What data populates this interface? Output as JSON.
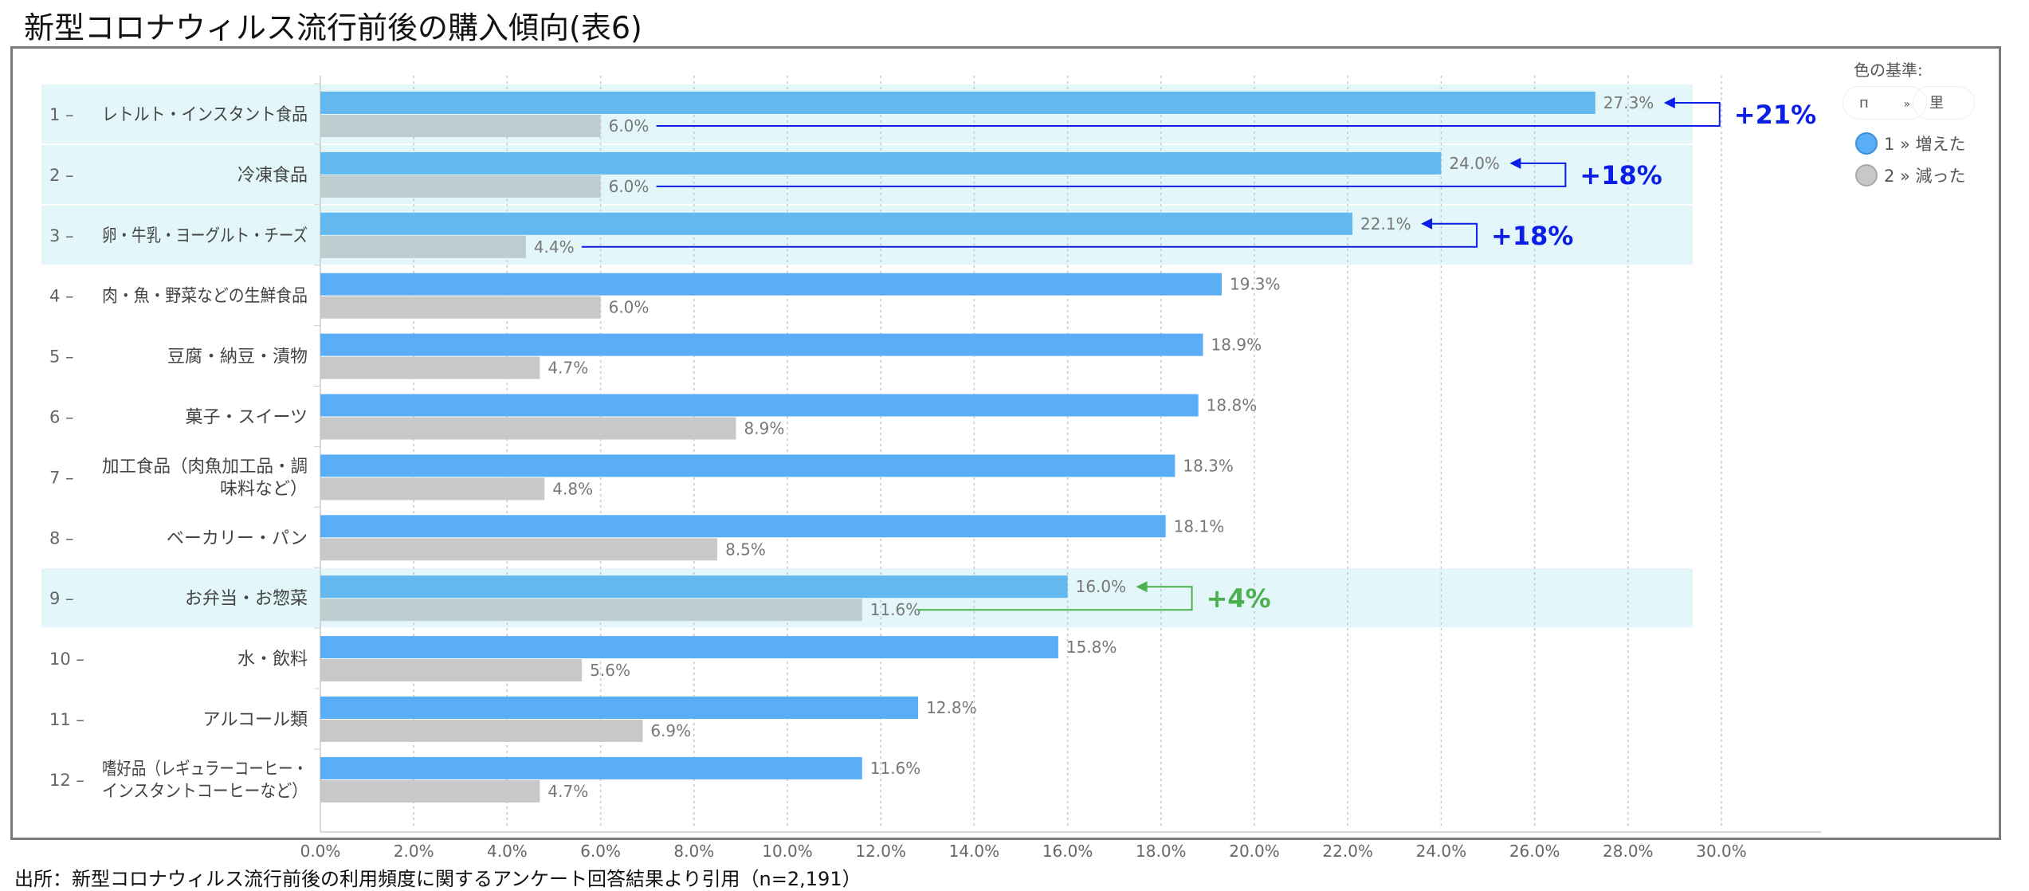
{
  "title": "新型コロナウィルス流行前後の購入傾向(表6)",
  "source": "出所：新型コロナウィルス流行前後の利用頻度に関するアンケート回答結果より引用（n=2,191）",
  "legend": {
    "title": "色の基準:",
    "pill_left": "п",
    "pill_sep": "»",
    "pill_right": "里",
    "items": [
      {
        "label": "1 » 増えた",
        "color": "#5aaef5"
      },
      {
        "label": "2 » 減った",
        "color": "#c8c8c8"
      }
    ]
  },
  "chart_data": {
    "type": "bar",
    "orientation": "horizontal",
    "categories": [
      {
        "rank": "1",
        "label": [
          "レトルト・インスタント食品"
        ]
      },
      {
        "rank": "2",
        "label": [
          "冷凍食品"
        ]
      },
      {
        "rank": "3",
        "label": [
          "卵・牛乳・ヨーグルト・チーズ"
        ]
      },
      {
        "rank": "4",
        "label": [
          "肉・魚・野菜などの生鮮食品"
        ]
      },
      {
        "rank": "5",
        "label": [
          "豆腐・納豆・漬物"
        ]
      },
      {
        "rank": "6",
        "label": [
          "菓子・スイーツ"
        ]
      },
      {
        "rank": "7",
        "label": [
          "加工食品（肉魚加工品・調",
          "味料など）"
        ]
      },
      {
        "rank": "8",
        "label": [
          "ベーカリー・パン"
        ]
      },
      {
        "rank": "9",
        "label": [
          "お弁当・お惣菜"
        ]
      },
      {
        "rank": "10",
        "label": [
          "水・飲料"
        ]
      },
      {
        "rank": "11",
        "label": [
          "アルコール類"
        ]
      },
      {
        "rank": "12",
        "label": [
          "嗜好品（レギュラーコーヒー・",
          "インスタントコーヒーなど）"
        ]
      }
    ],
    "series": [
      {
        "name": "1 » 増えた",
        "color": "#5aaef5",
        "highlight_color": "#64b8f0",
        "values": [
          27.3,
          24.0,
          22.1,
          19.3,
          18.9,
          18.8,
          18.3,
          18.1,
          16.0,
          15.8,
          12.8,
          11.6
        ]
      },
      {
        "name": "2 » 減った",
        "color": "#c8c8c8",
        "highlight_color": "#bccccf",
        "values": [
          6.0,
          6.0,
          4.4,
          6.0,
          4.7,
          8.9,
          4.8,
          8.5,
          11.6,
          5.6,
          6.9,
          4.7
        ]
      }
    ],
    "value_format": "%",
    "xlim": [
      0,
      30
    ],
    "xticks": [
      "0.0%",
      "2.0%",
      "4.0%",
      "6.0%",
      "8.0%",
      "10.0%",
      "12.0%",
      "14.0%",
      "16.0%",
      "18.0%",
      "20.0%",
      "22.0%",
      "24.0%",
      "26.0%",
      "28.0%",
      "30.0%"
    ],
    "grid": "vertical dotted",
    "highlighted_rows": [
      0,
      1,
      2,
      8
    ],
    "highlight_band_color": "#e3f6f9",
    "annotations": [
      {
        "row": 0,
        "text": "+21%",
        "color": "#0a1ee6"
      },
      {
        "row": 1,
        "text": "+18%",
        "color": "#0a1ee6"
      },
      {
        "row": 2,
        "text": "+18%",
        "color": "#0a1ee6"
      },
      {
        "row": 8,
        "text": "+4%",
        "color": "#4caf50"
      }
    ]
  }
}
